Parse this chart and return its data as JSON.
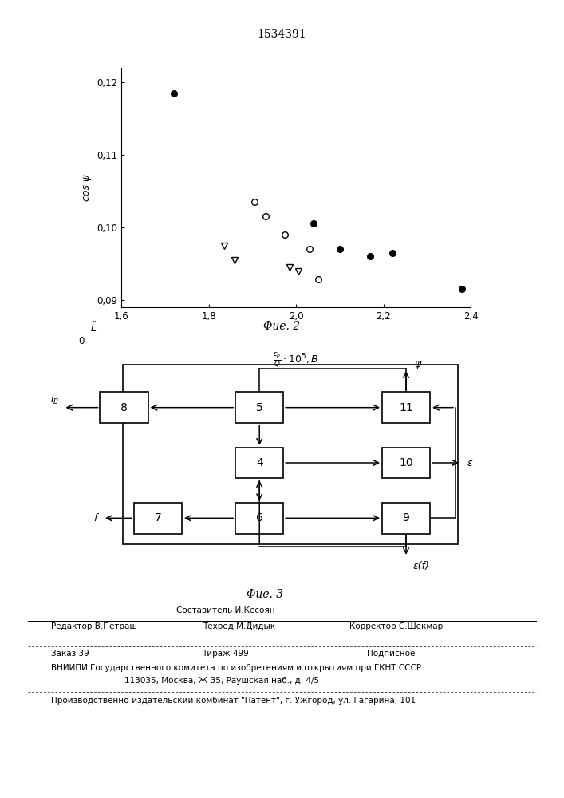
{
  "patent_number": "1534391",
  "fig2_title": "Φие. 2",
  "fig3_title": "Φие. 3",
  "xlim": [
    1.6,
    2.4
  ],
  "ylim": [
    0.089,
    0.122
  ],
  "xtick_labels": [
    "1,6",
    "1,8",
    "2,0",
    "2,2",
    "2,4"
  ],
  "ytick_labels": [
    "0,09",
    "0,10",
    "0,11",
    "0,12"
  ],
  "filled_circles": [
    [
      1.72,
      0.1185
    ],
    [
      2.04,
      0.1005
    ],
    [
      2.1,
      0.097
    ],
    [
      2.17,
      0.096
    ],
    [
      2.22,
      0.0965
    ],
    [
      2.38,
      0.0915
    ]
  ],
  "open_circles": [
    [
      1.905,
      0.1035
    ],
    [
      1.93,
      0.1015
    ],
    [
      1.975,
      0.099
    ],
    [
      2.03,
      0.097
    ],
    [
      2.05,
      0.0928
    ]
  ],
  "triangles_down": [
    [
      1.835,
      0.0975
    ],
    [
      1.86,
      0.0955
    ],
    [
      1.985,
      0.0945
    ],
    [
      2.005,
      0.094
    ]
  ]
}
